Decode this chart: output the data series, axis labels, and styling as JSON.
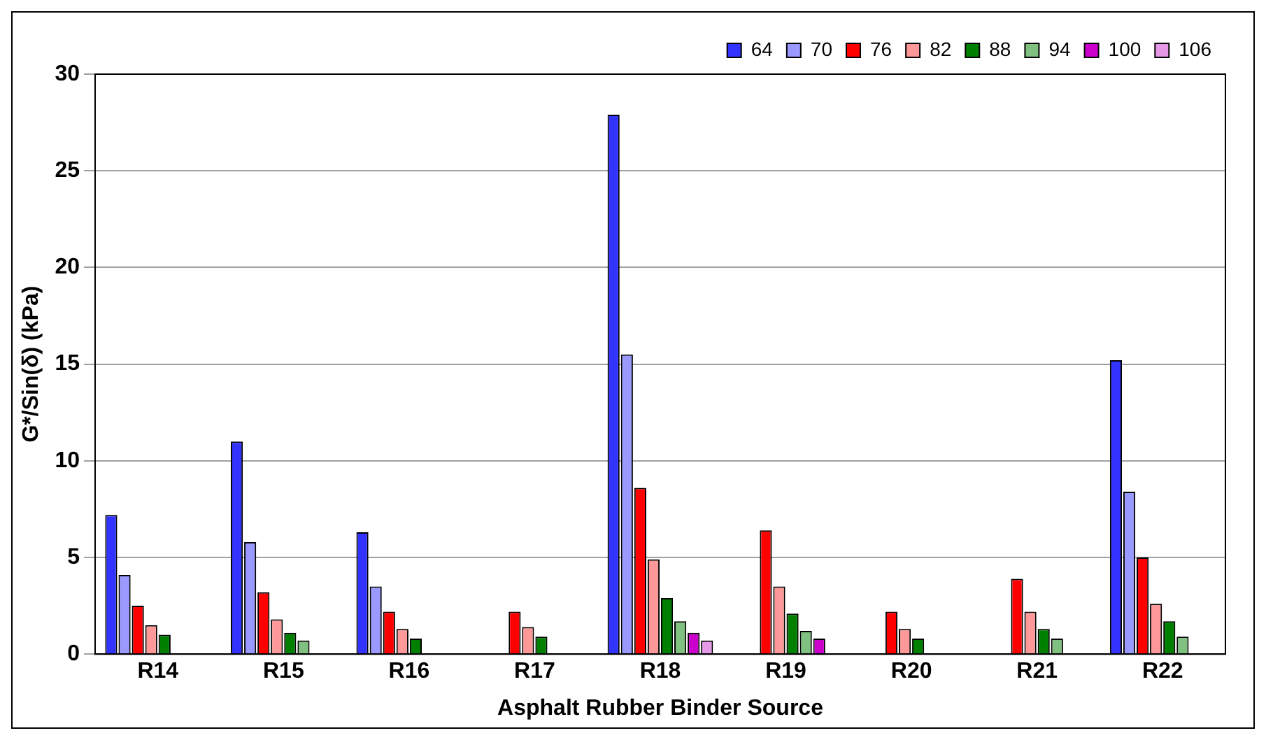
{
  "chart_data": {
    "type": "bar",
    "xlabel": "Asphalt Rubber Binder Source",
    "ylabel": "G*/Sin(δ) (kPa)",
    "categories": [
      "R14",
      "R15",
      "R16",
      "R17",
      "R18",
      "R19",
      "R20",
      "R21",
      "R22"
    ],
    "ylim": [
      0,
      30
    ],
    "yticks": [
      0,
      5,
      10,
      15,
      20,
      25,
      30
    ],
    "grid": "y",
    "legend": "top right",
    "series": [
      {
        "name": "64",
        "color": "#3333ff",
        "values": [
          7.2,
          11.0,
          6.3,
          null,
          27.9,
          null,
          null,
          null,
          15.2
        ]
      },
      {
        "name": "70",
        "color": "#9999ff",
        "values": [
          4.1,
          5.8,
          3.5,
          null,
          15.5,
          null,
          null,
          null,
          8.4
        ]
      },
      {
        "name": "76",
        "color": "#ff0000",
        "values": [
          2.5,
          3.2,
          2.2,
          2.2,
          8.6,
          6.4,
          2.2,
          3.9,
          5.0
        ]
      },
      {
        "name": "82",
        "color": "#ff9999",
        "values": [
          1.5,
          1.8,
          1.3,
          1.4,
          4.9,
          3.5,
          1.3,
          2.2,
          2.6
        ]
      },
      {
        "name": "88",
        "color": "#008000",
        "values": [
          1.0,
          1.1,
          0.8,
          0.9,
          2.9,
          2.1,
          0.8,
          1.3,
          1.7
        ]
      },
      {
        "name": "94",
        "color": "#80c080",
        "values": [
          null,
          0.7,
          null,
          null,
          1.7,
          1.2,
          null,
          0.8,
          0.9
        ]
      },
      {
        "name": "100",
        "color": "#cc00cc",
        "values": [
          null,
          null,
          null,
          null,
          1.1,
          0.8,
          null,
          null,
          null
        ]
      },
      {
        "name": "106",
        "color": "#e699e6",
        "values": [
          null,
          null,
          null,
          null,
          0.7,
          null,
          null,
          null,
          null
        ]
      }
    ]
  }
}
